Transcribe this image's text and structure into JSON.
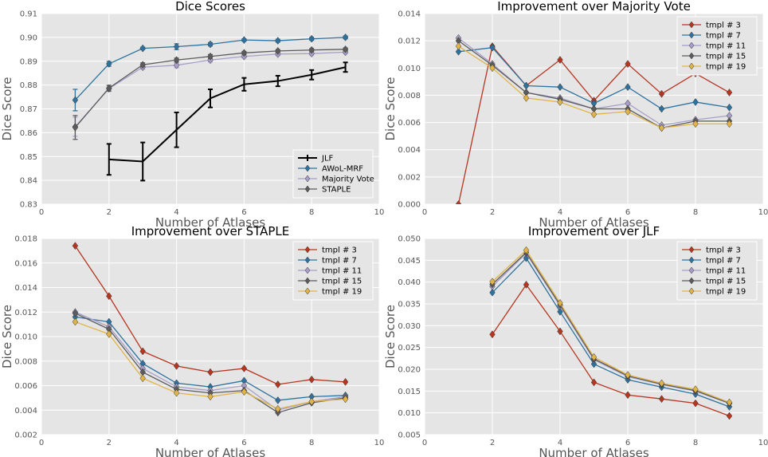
{
  "chart_data": [
    {
      "type": "line",
      "title": "Dice Scores",
      "xlabel": "Number of Atlases",
      "ylabel": "Dice Score",
      "xlim": [
        0,
        10
      ],
      "ylim": [
        0.83,
        0.91
      ],
      "xticks": [
        0,
        2,
        4,
        6,
        8,
        10
      ],
      "yticks": [
        0.83,
        0.84,
        0.85,
        0.86,
        0.87,
        0.88,
        0.89,
        0.9,
        0.91
      ],
      "xticklabels": [
        "0",
        "2",
        "4",
        "6",
        "8",
        "10"
      ],
      "yticklabels": [
        "0.83",
        "0.84",
        "0.85",
        "0.86",
        "0.87",
        "0.88",
        "0.89",
        "0.90",
        "0.91"
      ],
      "legend_position": "lower-right",
      "grid": true,
      "series": [
        {
          "name": "JLF",
          "color": "#000000",
          "marker": "none",
          "linewidth": 2,
          "x": [
            2,
            3,
            4,
            5,
            6,
            7,
            8,
            9
          ],
          "y": [
            0.8488,
            0.8479,
            0.8612,
            0.8744,
            0.8803,
            0.8817,
            0.8843,
            0.8875
          ],
          "err": [
            0.0065,
            0.008,
            0.0073,
            0.0038,
            0.0027,
            0.0022,
            0.002,
            0.002
          ]
        },
        {
          "name": "AWoL-MRF",
          "color": "#2e73a0",
          "marker": "diamond",
          "linewidth": 1.3,
          "x": [
            1,
            2,
            3,
            4,
            5,
            6,
            7,
            8,
            9
          ],
          "y": [
            0.8737,
            0.8889,
            0.8954,
            0.8961,
            0.8971,
            0.8989,
            0.8986,
            0.8994,
            0.9
          ],
          "err": [
            0.0045,
            0.001,
            0.0005,
            0.0012,
            0.0007,
            0.0005,
            0.0006,
            0.0006,
            0.0006
          ]
        },
        {
          "name": "Majority Vote",
          "color": "#a89ec9",
          "marker": "diamond",
          "linewidth": 1.3,
          "x": [
            1,
            2,
            3,
            4,
            5,
            6,
            7,
            8,
            9
          ],
          "y": [
            0.8625,
            0.8785,
            0.8875,
            0.8883,
            0.8905,
            0.892,
            0.893,
            0.8932,
            0.8938
          ],
          "err": [
            0.004,
            0.0012,
            0.0008,
            0.001,
            0.0008,
            0.0006,
            0.0006,
            0.0006,
            0.0006
          ]
        },
        {
          "name": "STAPLE",
          "color": "#5c5c5c",
          "marker": "diamond",
          "linewidth": 1.3,
          "x": [
            1,
            2,
            3,
            4,
            5,
            6,
            7,
            8,
            9
          ],
          "y": [
            0.8622,
            0.8787,
            0.8885,
            0.8905,
            0.892,
            0.8935,
            0.8943,
            0.8947,
            0.895
          ],
          "err": [
            0.005,
            0.0012,
            0.0008,
            0.0008,
            0.0008,
            0.0006,
            0.0006,
            0.0006,
            0.0006
          ]
        }
      ]
    },
    {
      "type": "line",
      "title": "Improvement over Majority Vote",
      "xlabel": "Number of Atlases",
      "ylabel": "Dice Score",
      "xlim": [
        0,
        10
      ],
      "ylim": [
        0.0,
        0.014
      ],
      "xticks": [
        0,
        2,
        4,
        6,
        8,
        10
      ],
      "yticks": [
        0.0,
        0.002,
        0.004,
        0.006,
        0.008,
        0.01,
        0.012,
        0.014
      ],
      "xticklabels": [
        "0",
        "2",
        "4",
        "6",
        "8",
        "10"
      ],
      "yticklabels": [
        "0.000",
        "0.002",
        "0.004",
        "0.006",
        "0.008",
        "0.010",
        "0.012",
        "0.014"
      ],
      "legend_position": "top-right",
      "grid": true,
      "series": [
        {
          "name": "tmpl # 3",
          "color": "#b6361f",
          "marker": "diamond",
          "x": [
            1,
            2,
            3,
            4,
            5,
            6,
            7,
            8,
            9
          ],
          "y": [
            0.0,
            0.0116,
            0.0087,
            0.0106,
            0.0076,
            0.0103,
            0.0081,
            0.0096,
            0.0082
          ]
        },
        {
          "name": "tmpl # 7",
          "color": "#2e73a0",
          "marker": "diamond",
          "x": [
            1,
            2,
            3,
            4,
            5,
            6,
            7,
            8,
            9
          ],
          "y": [
            0.0112,
            0.0115,
            0.0087,
            0.0086,
            0.0074,
            0.0086,
            0.007,
            0.0075,
            0.0071
          ]
        },
        {
          "name": "tmpl # 11",
          "color": "#a89ec9",
          "marker": "diamond",
          "x": [
            1,
            2,
            3,
            4,
            5,
            6,
            7,
            8,
            9
          ],
          "y": [
            0.0122,
            0.0103,
            0.0082,
            0.0078,
            0.007,
            0.0074,
            0.0058,
            0.0062,
            0.0065
          ]
        },
        {
          "name": "tmpl # 15",
          "color": "#5c5c5c",
          "marker": "diamond",
          "x": [
            1,
            2,
            3,
            4,
            5,
            6,
            7,
            8,
            9
          ],
          "y": [
            0.012,
            0.0102,
            0.0082,
            0.0077,
            0.007,
            0.007,
            0.0056,
            0.0061,
            0.0061
          ]
        },
        {
          "name": "tmpl # 19",
          "color": "#e0b448",
          "marker": "diamond",
          "x": [
            1,
            2,
            3,
            4,
            5,
            6,
            7,
            8,
            9
          ],
          "y": [
            0.0116,
            0.01,
            0.0078,
            0.0075,
            0.0066,
            0.0068,
            0.0056,
            0.0059,
            0.0059
          ]
        }
      ]
    },
    {
      "type": "line",
      "title": "Improvement over STAPLE",
      "xlabel": "Number of Atlases",
      "ylabel": "Dice Score",
      "xlim": [
        0,
        10
      ],
      "ylim": [
        0.002,
        0.018
      ],
      "xticks": [
        0,
        2,
        4,
        6,
        8,
        10
      ],
      "yticks": [
        0.002,
        0.004,
        0.006,
        0.008,
        0.01,
        0.012,
        0.014,
        0.016,
        0.018
      ],
      "xticklabels": [
        "0",
        "2",
        "4",
        "6",
        "8",
        "10"
      ],
      "yticklabels": [
        "0.002",
        "0.004",
        "0.006",
        "0.008",
        "0.010",
        "0.012",
        "0.014",
        "0.016",
        "0.018"
      ],
      "legend_position": "top-right",
      "grid": true,
      "series": [
        {
          "name": "tmpl # 3",
          "color": "#b6361f",
          "marker": "diamond",
          "x": [
            1,
            2,
            3,
            4,
            5,
            6,
            7,
            8,
            9
          ],
          "y": [
            0.0174,
            0.0133,
            0.0088,
            0.0076,
            0.0071,
            0.0074,
            0.0061,
            0.0065,
            0.0063
          ]
        },
        {
          "name": "tmpl # 7",
          "color": "#2e73a0",
          "marker": "diamond",
          "x": [
            1,
            2,
            3,
            4,
            5,
            6,
            7,
            8,
            9
          ],
          "y": [
            0.0116,
            0.0112,
            0.0078,
            0.0062,
            0.0059,
            0.0064,
            0.0048,
            0.0051,
            0.0052
          ]
        },
        {
          "name": "tmpl # 11",
          "color": "#a89ec9",
          "marker": "diamond",
          "x": [
            1,
            2,
            3,
            4,
            5,
            6,
            7,
            8,
            9
          ],
          "y": [
            0.012,
            0.0108,
            0.0074,
            0.0059,
            0.0056,
            0.006,
            0.004,
            0.0047,
            0.0051
          ]
        },
        {
          "name": "tmpl # 15",
          "color": "#5c5c5c",
          "marker": "diamond",
          "x": [
            1,
            2,
            3,
            4,
            5,
            6,
            7,
            8,
            9
          ],
          "y": [
            0.0119,
            0.0106,
            0.0071,
            0.0057,
            0.0054,
            0.0056,
            0.0038,
            0.0046,
            0.005
          ]
        },
        {
          "name": "tmpl # 19",
          "color": "#e0b448",
          "marker": "diamond",
          "x": [
            1,
            2,
            3,
            4,
            5,
            6,
            7,
            8,
            9
          ],
          "y": [
            0.0112,
            0.0102,
            0.0066,
            0.0054,
            0.0051,
            0.0055,
            0.0041,
            0.0047,
            0.0049
          ]
        }
      ]
    },
    {
      "type": "line",
      "title": "Improvement over JLF",
      "xlabel": "Number of Atlases",
      "ylabel": "Dice Score",
      "xlim": [
        0,
        10
      ],
      "ylim": [
        0.005,
        0.05
      ],
      "xticks": [
        0,
        2,
        4,
        6,
        8,
        10
      ],
      "yticks": [
        0.005,
        0.01,
        0.015,
        0.02,
        0.025,
        0.03,
        0.035,
        0.04,
        0.045,
        0.05
      ],
      "xticklabels": [
        "0",
        "2",
        "4",
        "6",
        "8",
        "10"
      ],
      "yticklabels": [
        "0.005",
        "0.010",
        "0.015",
        "0.020",
        "0.025",
        "0.030",
        "0.035",
        "0.040",
        "0.045",
        "0.050"
      ],
      "legend_position": "top-right",
      "grid": true,
      "series": [
        {
          "name": "tmpl # 3",
          "color": "#b6361f",
          "marker": "diamond",
          "x": [
            2,
            3,
            4,
            5,
            6,
            7,
            8,
            9
          ],
          "y": [
            0.028,
            0.0394,
            0.0287,
            0.017,
            0.0141,
            0.0132,
            0.0122,
            0.0093
          ]
        },
        {
          "name": "tmpl # 7",
          "color": "#2e73a0",
          "marker": "diamond",
          "x": [
            2,
            3,
            4,
            5,
            6,
            7,
            8,
            9
          ],
          "y": [
            0.0376,
            0.0455,
            0.0332,
            0.0212,
            0.0176,
            0.0159,
            0.0143,
            0.0114
          ]
        },
        {
          "name": "tmpl # 11",
          "color": "#a89ec9",
          "marker": "diamond",
          "x": [
            2,
            3,
            4,
            5,
            6,
            7,
            8,
            9
          ],
          "y": [
            0.039,
            0.0466,
            0.0345,
            0.0222,
            0.0183,
            0.0165,
            0.015,
            0.0122
          ]
        },
        {
          "name": "tmpl # 15",
          "color": "#5c5c5c",
          "marker": "diamond",
          "x": [
            2,
            3,
            4,
            5,
            6,
            7,
            8,
            9
          ],
          "y": [
            0.0395,
            0.0468,
            0.0348,
            0.0224,
            0.0185,
            0.0166,
            0.0151,
            0.0122
          ]
        },
        {
          "name": "tmpl # 19",
          "color": "#e0b448",
          "marker": "diamond",
          "x": [
            2,
            3,
            4,
            5,
            6,
            7,
            8,
            9
          ],
          "y": [
            0.0401,
            0.0473,
            0.0352,
            0.0228,
            0.0187,
            0.0168,
            0.0154,
            0.0124
          ]
        }
      ]
    }
  ]
}
